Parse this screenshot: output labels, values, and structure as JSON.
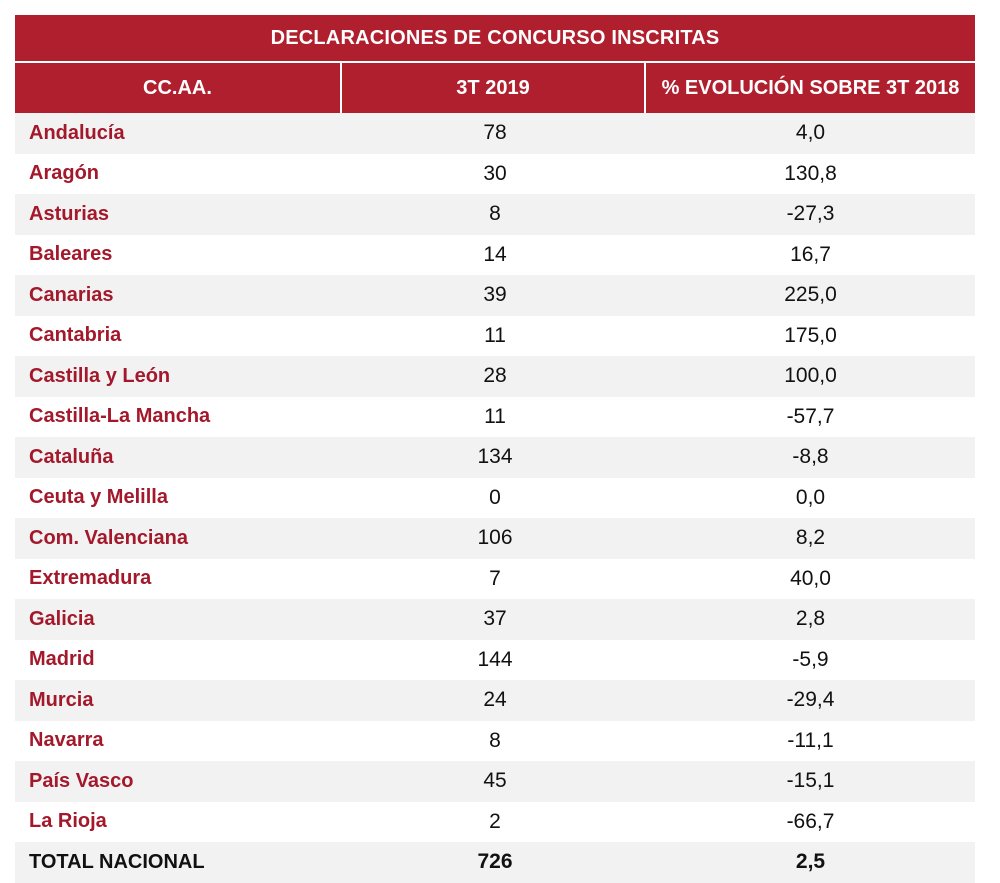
{
  "table": {
    "title": "DECLARACIONES DE CONCURSO INSCRITAS",
    "headers": [
      "CC.AA.",
      "3T 2019",
      "% EVOLUCIÓN SOBRE 3T 2018"
    ],
    "rows": [
      {
        "region": "Andalucía",
        "value": "78",
        "change": "4,0"
      },
      {
        "region": "Aragón",
        "value": "30",
        "change": "130,8"
      },
      {
        "region": "Asturias",
        "value": "8",
        "change": "-27,3"
      },
      {
        "region": "Baleares",
        "value": "14",
        "change": "16,7"
      },
      {
        "region": "Canarias",
        "value": "39",
        "change": "225,0"
      },
      {
        "region": "Cantabria",
        "value": "11",
        "change": "175,0"
      },
      {
        "region": "Castilla y León",
        "value": "28",
        "change": "100,0"
      },
      {
        "region": "Castilla-La Mancha",
        "value": "11",
        "change": "-57,7"
      },
      {
        "region": "Cataluña",
        "value": "134",
        "change": "-8,8"
      },
      {
        "region": "Ceuta y Melilla",
        "value": "0",
        "change": "0,0"
      },
      {
        "region": "Com. Valenciana",
        "value": "106",
        "change": "8,2"
      },
      {
        "region": "Extremadura",
        "value": "7",
        "change": "40,0"
      },
      {
        "region": "Galicia",
        "value": "37",
        "change": "2,8"
      },
      {
        "region": "Madrid",
        "value": "144",
        "change": "-5,9"
      },
      {
        "region": "Murcia",
        "value": "24",
        "change": "-29,4"
      },
      {
        "region": "Navarra",
        "value": "8",
        "change": "-11,1"
      },
      {
        "region": "País Vasco",
        "value": "45",
        "change": "-15,1"
      },
      {
        "region": "La Rioja",
        "value": "2",
        "change": "-66,7"
      }
    ],
    "total": {
      "region": "TOTAL NACIONAL",
      "value": "726",
      "change": "2,5"
    }
  },
  "colors": {
    "header_bg": "#b01f2e",
    "region_text": "#a3192b",
    "stripe": "#f2f2f2"
  }
}
